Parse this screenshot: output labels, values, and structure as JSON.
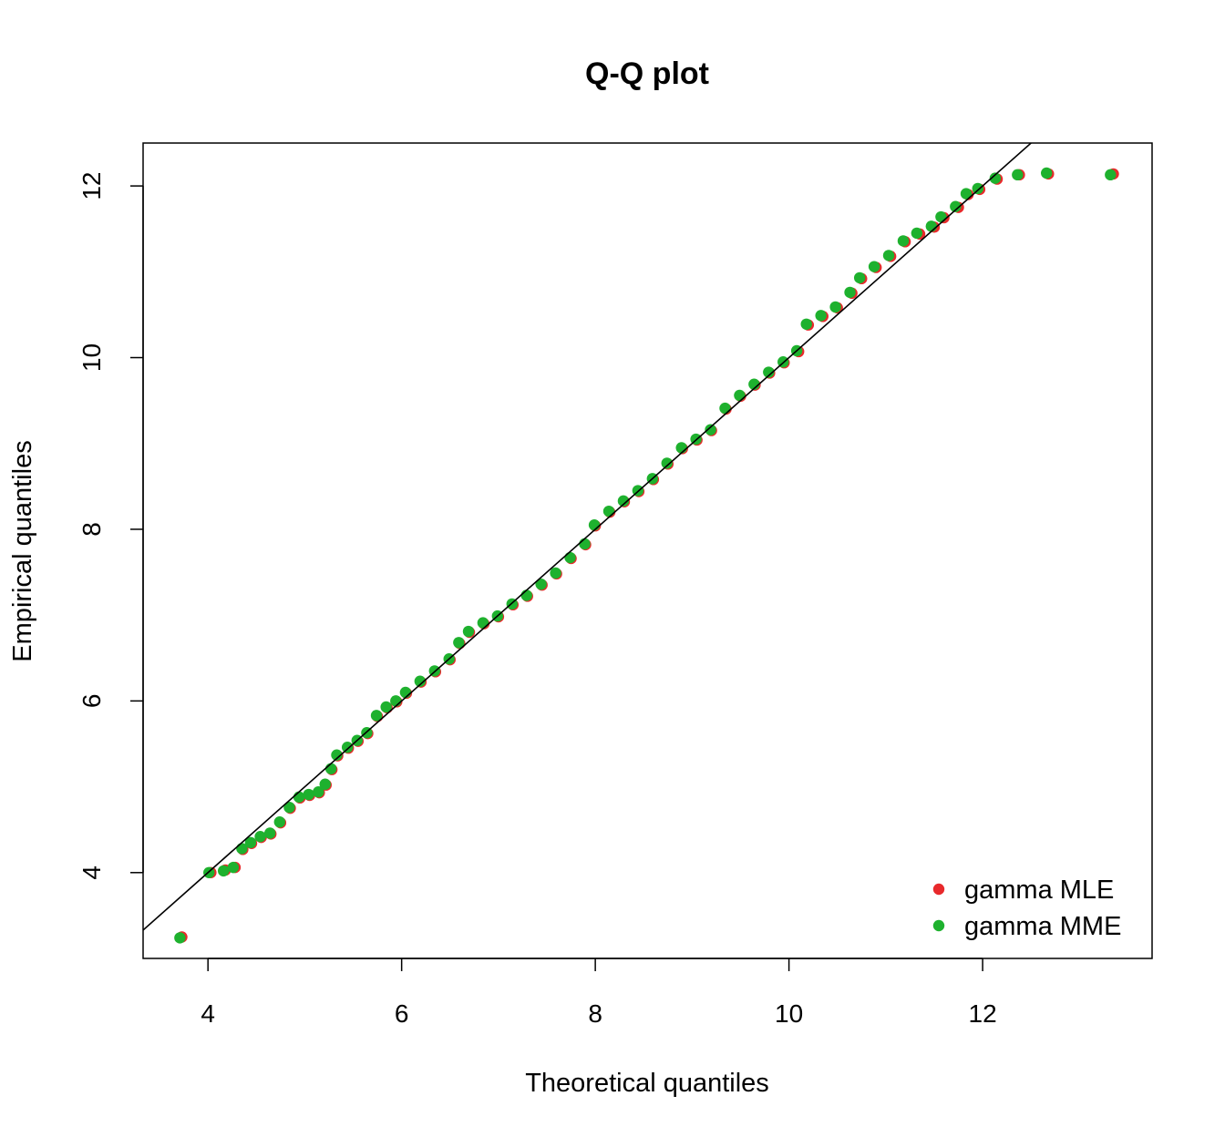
{
  "chart_data": {
    "type": "scatter",
    "title": "Q-Q plot",
    "xlabel": "Theoretical quantiles",
    "ylabel": "Empirical quantiles",
    "xlim": [
      3.33,
      13.75
    ],
    "ylim": [
      3.0,
      12.5
    ],
    "xticks": [
      4,
      6,
      8,
      10,
      12
    ],
    "yticks": [
      4,
      6,
      8,
      10,
      12
    ],
    "reference_line": {
      "slope": 1,
      "intercept": 0,
      "color": "#000000"
    },
    "legend_position": "bottom-right",
    "series": [
      {
        "name": "gamma MLE",
        "color": "#e8292b",
        "points": [
          [
            3.73,
            3.25
          ],
          [
            4.03,
            4.0
          ],
          [
            4.18,
            4.03
          ],
          [
            4.28,
            4.06
          ],
          [
            4.36,
            4.27
          ],
          [
            4.45,
            4.34
          ],
          [
            4.55,
            4.41
          ],
          [
            4.65,
            4.45
          ],
          [
            4.75,
            4.58
          ],
          [
            4.85,
            4.75
          ],
          [
            4.95,
            4.87
          ],
          [
            5.05,
            4.9
          ],
          [
            5.15,
            4.93
          ],
          [
            5.22,
            5.02
          ],
          [
            5.28,
            5.2
          ],
          [
            5.34,
            5.36
          ],
          [
            5.45,
            5.45
          ],
          [
            5.55,
            5.53
          ],
          [
            5.65,
            5.62
          ],
          [
            5.75,
            5.82
          ],
          [
            5.85,
            5.92
          ],
          [
            5.95,
            5.99
          ],
          [
            6.05,
            6.09
          ],
          [
            6.2,
            6.22
          ],
          [
            6.35,
            6.34
          ],
          [
            6.5,
            6.48
          ],
          [
            6.6,
            6.67
          ],
          [
            6.7,
            6.8
          ],
          [
            6.85,
            6.9
          ],
          [
            7.0,
            6.98
          ],
          [
            7.15,
            7.12
          ],
          [
            7.3,
            7.22
          ],
          [
            7.45,
            7.35
          ],
          [
            7.6,
            7.48
          ],
          [
            7.75,
            7.66
          ],
          [
            7.9,
            7.82
          ],
          [
            8.0,
            8.04
          ],
          [
            8.15,
            8.2
          ],
          [
            8.3,
            8.32
          ],
          [
            8.45,
            8.44
          ],
          [
            8.6,
            8.58
          ],
          [
            8.75,
            8.76
          ],
          [
            8.9,
            8.94
          ],
          [
            9.05,
            9.04
          ],
          [
            9.2,
            9.15
          ],
          [
            9.35,
            9.4
          ],
          [
            9.5,
            9.55
          ],
          [
            9.65,
            9.68
          ],
          [
            9.8,
            9.82
          ],
          [
            9.95,
            9.94
          ],
          [
            10.1,
            10.07
          ],
          [
            10.2,
            10.38
          ],
          [
            10.35,
            10.48
          ],
          [
            10.5,
            10.58
          ],
          [
            10.65,
            10.75
          ],
          [
            10.75,
            10.92
          ],
          [
            10.9,
            11.05
          ],
          [
            11.05,
            11.18
          ],
          [
            11.2,
            11.35
          ],
          [
            11.35,
            11.44
          ],
          [
            11.5,
            11.52
          ],
          [
            11.6,
            11.63
          ],
          [
            11.75,
            11.75
          ],
          [
            11.85,
            11.9
          ],
          [
            11.97,
            11.96
          ],
          [
            12.15,
            12.08
          ],
          [
            12.38,
            12.13
          ],
          [
            12.68,
            12.14
          ],
          [
            13.35,
            12.14
          ]
        ]
      },
      {
        "name": "gamma MME",
        "color": "#1eb12e",
        "points": [
          [
            3.71,
            3.24
          ],
          [
            4.01,
            4.0
          ],
          [
            4.16,
            4.02
          ],
          [
            4.26,
            4.06
          ],
          [
            4.35,
            4.28
          ],
          [
            4.44,
            4.35
          ],
          [
            4.54,
            4.42
          ],
          [
            4.64,
            4.46
          ],
          [
            4.74,
            4.59
          ],
          [
            4.84,
            4.76
          ],
          [
            4.94,
            4.88
          ],
          [
            5.04,
            4.91
          ],
          [
            5.14,
            4.94
          ],
          [
            5.21,
            5.03
          ],
          [
            5.27,
            5.21
          ],
          [
            5.33,
            5.37
          ],
          [
            5.44,
            5.46
          ],
          [
            5.54,
            5.54
          ],
          [
            5.64,
            5.63
          ],
          [
            5.74,
            5.83
          ],
          [
            5.84,
            5.93
          ],
          [
            5.94,
            6.0
          ],
          [
            6.04,
            6.1
          ],
          [
            6.19,
            6.23
          ],
          [
            6.34,
            6.35
          ],
          [
            6.49,
            6.49
          ],
          [
            6.59,
            6.68
          ],
          [
            6.69,
            6.81
          ],
          [
            6.84,
            6.91
          ],
          [
            6.99,
            6.99
          ],
          [
            7.14,
            7.13
          ],
          [
            7.29,
            7.23
          ],
          [
            7.44,
            7.36
          ],
          [
            7.59,
            7.49
          ],
          [
            7.74,
            7.67
          ],
          [
            7.89,
            7.83
          ],
          [
            7.99,
            8.05
          ],
          [
            8.14,
            8.21
          ],
          [
            8.29,
            8.33
          ],
          [
            8.44,
            8.45
          ],
          [
            8.59,
            8.59
          ],
          [
            8.74,
            8.77
          ],
          [
            8.89,
            8.95
          ],
          [
            9.04,
            9.05
          ],
          [
            9.19,
            9.16
          ],
          [
            9.34,
            9.41
          ],
          [
            9.49,
            9.56
          ],
          [
            9.64,
            9.69
          ],
          [
            9.79,
            9.83
          ],
          [
            9.94,
            9.95
          ],
          [
            10.08,
            10.08
          ],
          [
            10.18,
            10.39
          ],
          [
            10.33,
            10.49
          ],
          [
            10.48,
            10.59
          ],
          [
            10.63,
            10.76
          ],
          [
            10.73,
            10.93
          ],
          [
            10.88,
            11.06
          ],
          [
            11.03,
            11.19
          ],
          [
            11.18,
            11.36
          ],
          [
            11.32,
            11.45
          ],
          [
            11.47,
            11.53
          ],
          [
            11.57,
            11.64
          ],
          [
            11.72,
            11.76
          ],
          [
            11.83,
            11.91
          ],
          [
            11.95,
            11.97
          ],
          [
            12.13,
            12.09
          ],
          [
            12.36,
            12.13
          ],
          [
            12.66,
            12.15
          ],
          [
            13.32,
            12.13
          ]
        ]
      }
    ]
  }
}
